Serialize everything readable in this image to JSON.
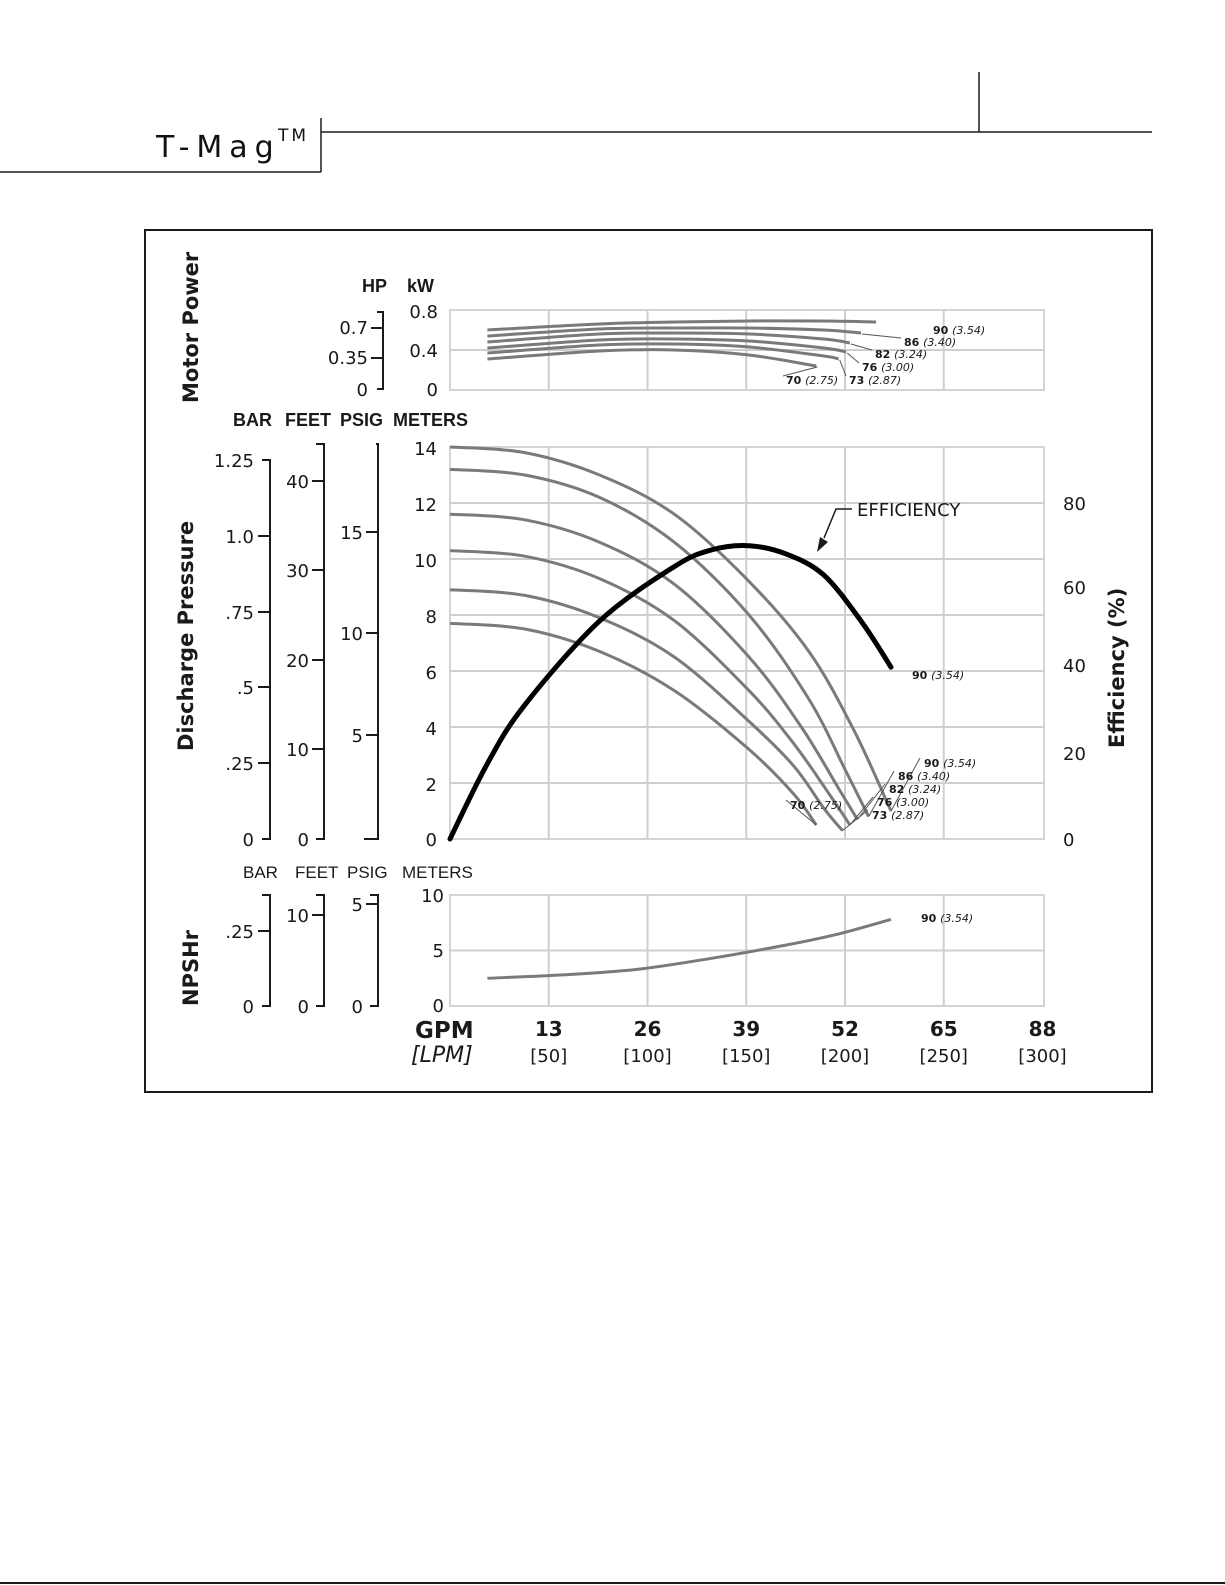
{
  "header": {
    "title": "T-Mag",
    "trademark": "TM"
  },
  "colors": {
    "curves": "#7a7a7a",
    "efficiency": "#000000",
    "grid": "#cfcfcf",
    "frame": "#1a1a1a"
  },
  "chart_data": [
    {
      "type": "line",
      "title": "Motor Power",
      "axis_units": [
        "HP",
        "kW"
      ],
      "ylim_kw": [
        0,
        0.8
      ],
      "kw_ticks": [
        "0.8",
        "0.4",
        "0"
      ],
      "hp_ticks": [
        "0.7",
        "0.35",
        "0"
      ],
      "series": [
        {
          "name": "90",
          "sub": "(3.54)",
          "x": [
            5,
            20,
            30,
            40,
            50,
            57
          ],
          "y": [
            0.6,
            0.66,
            0.68,
            0.69,
            0.69,
            0.68
          ]
        },
        {
          "name": "86",
          "sub": "(3.40)",
          "x": [
            5,
            20,
            30,
            40,
            50,
            55
          ],
          "y": [
            0.54,
            0.61,
            0.62,
            0.62,
            0.6,
            0.57
          ]
        },
        {
          "name": "82",
          "sub": "(3.24)",
          "x": [
            5,
            20,
            30,
            40,
            50,
            53.5
          ],
          "y": [
            0.48,
            0.56,
            0.57,
            0.56,
            0.51,
            0.47
          ]
        },
        {
          "name": "76",
          "sub": "(3.00)",
          "x": [
            5,
            20,
            30,
            40,
            50,
            53
          ],
          "y": [
            0.42,
            0.5,
            0.51,
            0.49,
            0.42,
            0.38
          ]
        },
        {
          "name": "73",
          "sub": "(2.87)",
          "x": [
            5,
            20,
            30,
            40,
            50,
            52
          ],
          "y": [
            0.37,
            0.45,
            0.46,
            0.43,
            0.34,
            0.31
          ]
        },
        {
          "name": "70",
          "sub": "(2.75)",
          "x": [
            5,
            20,
            30,
            40,
            49
          ],
          "y": [
            0.31,
            0.39,
            0.4,
            0.35,
            0.24
          ]
        }
      ]
    },
    {
      "type": "line",
      "title": "Discharge Pressure",
      "axis_units": [
        "BAR",
        "FEET",
        "PSIG",
        "METERS"
      ],
      "ylim_meters": [
        0,
        14
      ],
      "meters_ticks": [
        "14",
        "12",
        "10",
        "8",
        "6",
        "4",
        "2",
        "0"
      ],
      "bar_ticks": [
        "1.25",
        "1.0",
        ".75",
        ".5",
        ".25",
        "0"
      ],
      "feet_ticks": [
        "40",
        "30",
        "20",
        "10",
        "0"
      ],
      "psig_ticks": [
        "15",
        "10",
        "5"
      ],
      "efficiency_label": "EFFICIENCY",
      "right_axis_label": "Efficiency (%)",
      "efficiency_ticks": [
        "80",
        "60",
        "40",
        "20",
        "0"
      ],
      "series": [
        {
          "name": "90",
          "sub": "(3.54)",
          "x": [
            0,
            10,
            20,
            30,
            40,
            48,
            54,
            59
          ],
          "y": [
            14.0,
            13.8,
            13.0,
            11.6,
            9.2,
            6.7,
            3.9,
            1.0
          ]
        },
        {
          "name": "86",
          "sub": "(3.40)",
          "x": [
            0,
            10,
            20,
            30,
            40,
            48,
            53,
            56
          ],
          "y": [
            13.2,
            13.0,
            12.2,
            10.6,
            8.0,
            5.0,
            2.4,
            0.8
          ]
        },
        {
          "name": "82",
          "sub": "(3.24)",
          "x": [
            0,
            10,
            20,
            30,
            40,
            47,
            52,
            54.5
          ],
          "y": [
            11.6,
            11.4,
            10.6,
            9.1,
            6.5,
            4.0,
            1.8,
            0.7
          ]
        },
        {
          "name": "76",
          "sub": "(3.00)",
          "x": [
            0,
            10,
            20,
            30,
            40,
            46,
            51,
            53.5
          ],
          "y": [
            10.3,
            10.1,
            9.3,
            7.8,
            5.3,
            3.4,
            1.5,
            0.5
          ]
        },
        {
          "name": "73",
          "sub": "(2.87)",
          "x": [
            0,
            10,
            20,
            30,
            40,
            46,
            50,
            52.5
          ],
          "y": [
            8.9,
            8.7,
            7.9,
            6.5,
            4.2,
            2.6,
            1.1,
            0.3
          ]
        },
        {
          "name": "70",
          "sub": "(2.75)",
          "x": [
            0,
            10,
            20,
            30,
            40,
            46,
            49
          ],
          "y": [
            7.7,
            7.5,
            6.7,
            5.3,
            3.2,
            1.6,
            0.5
          ]
        }
      ],
      "efficiency_series": {
        "name": "90",
        "sub": "(3.54)",
        "x": [
          0,
          5,
          10,
          20,
          30,
          35,
          40,
          45,
          50,
          55,
          59
        ],
        "y_pct": [
          0,
          18,
          32,
          52,
          65,
          69,
          70,
          68,
          63,
          52,
          41
        ]
      }
    },
    {
      "type": "line",
      "title": "NPSHr",
      "axis_units": [
        "BAR",
        "FEET",
        "PSIG",
        "METERS"
      ],
      "ylim_meters": [
        0,
        10
      ],
      "meters_ticks": [
        "10",
        "5",
        "0"
      ],
      "bar_ticks": [
        ".25",
        "0"
      ],
      "feet_ticks": [
        "10",
        "0"
      ],
      "psig_ticks": [
        "5",
        "0"
      ],
      "series": [
        {
          "name": "90",
          "sub": "(3.54)",
          "x": [
            5,
            15,
            25,
            35,
            45,
            52,
            59
          ],
          "y": [
            2.5,
            2.8,
            3.3,
            4.3,
            5.5,
            6.5,
            7.8
          ]
        }
      ]
    }
  ],
  "x_axis": {
    "unit_gpm": "GPM",
    "unit_lpm": "[LPM]",
    "gpm_ticks": [
      "13",
      "26",
      "39",
      "52",
      "65",
      "88"
    ],
    "lpm_ticks": [
      "[50]",
      "[100]",
      "[150]",
      "[200]",
      "[250]",
      "[300]"
    ]
  }
}
